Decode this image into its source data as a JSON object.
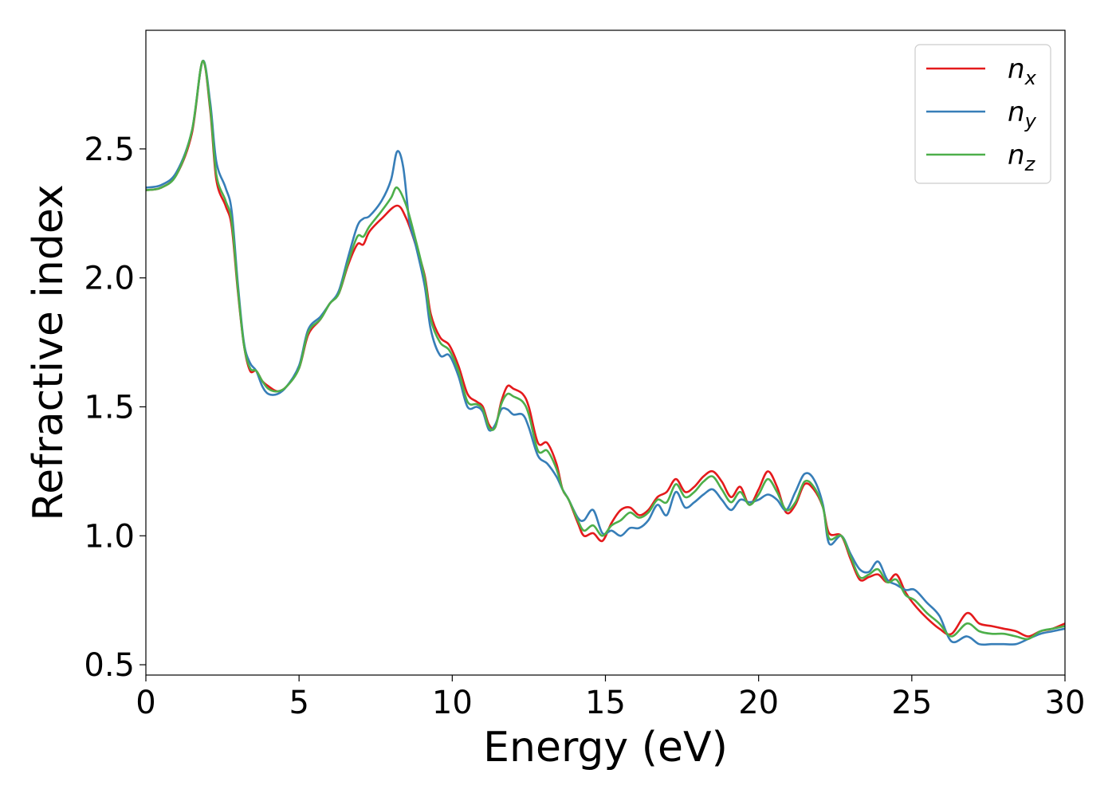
{
  "chart_data": {
    "type": "line",
    "title": "",
    "xlabel": "Energy (eV)",
    "ylabel": "Refractive index",
    "xlim": [
      0,
      30
    ],
    "ylim": [
      0.46,
      2.96
    ],
    "xticks": [
      0,
      5,
      10,
      15,
      20,
      25,
      30
    ],
    "xtick_labels": [
      "0",
      "5",
      "10",
      "15",
      "20",
      "25",
      "30"
    ],
    "yticks": [
      0.5,
      1.0,
      1.5,
      2.0,
      2.5
    ],
    "ytick_labels": [
      "0.5",
      "1.0",
      "1.5",
      "2.0",
      "2.5"
    ],
    "grid": false,
    "legend_position": "top-right",
    "series": [
      {
        "name": "n_x",
        "label_main": "n",
        "label_sub": "x",
        "color": "#e41a1c",
        "points": [
          [
            0,
            2.34
          ],
          [
            0.5,
            2.35
          ],
          [
            1.0,
            2.4
          ],
          [
            1.5,
            2.56
          ],
          [
            1.85,
            2.84
          ],
          [
            2.1,
            2.65
          ],
          [
            2.3,
            2.38
          ],
          [
            2.6,
            2.28
          ],
          [
            2.8,
            2.2
          ],
          [
            3.0,
            1.95
          ],
          [
            3.2,
            1.74
          ],
          [
            3.4,
            1.64
          ],
          [
            3.6,
            1.64
          ],
          [
            3.8,
            1.6
          ],
          [
            4.0,
            1.58
          ],
          [
            4.3,
            1.56
          ],
          [
            4.6,
            1.58
          ],
          [
            5.0,
            1.65
          ],
          [
            5.3,
            1.78
          ],
          [
            5.7,
            1.84
          ],
          [
            6.0,
            1.9
          ],
          [
            6.3,
            1.94
          ],
          [
            6.6,
            2.05
          ],
          [
            6.9,
            2.13
          ],
          [
            7.1,
            2.13
          ],
          [
            7.3,
            2.18
          ],
          [
            7.7,
            2.23
          ],
          [
            8.2,
            2.28
          ],
          [
            8.5,
            2.23
          ],
          [
            8.8,
            2.13
          ],
          [
            9.1,
            2.01
          ],
          [
            9.3,
            1.86
          ],
          [
            9.6,
            1.77
          ],
          [
            9.9,
            1.74
          ],
          [
            10.2,
            1.66
          ],
          [
            10.5,
            1.55
          ],
          [
            10.8,
            1.52
          ],
          [
            11.0,
            1.5
          ],
          [
            11.2,
            1.43
          ],
          [
            11.4,
            1.42
          ],
          [
            11.6,
            1.52
          ],
          [
            11.8,
            1.58
          ],
          [
            12.0,
            1.57
          ],
          [
            12.3,
            1.55
          ],
          [
            12.5,
            1.5
          ],
          [
            12.8,
            1.36
          ],
          [
            13.1,
            1.36
          ],
          [
            13.4,
            1.28
          ],
          [
            13.6,
            1.18
          ],
          [
            13.8,
            1.14
          ],
          [
            14.1,
            1.05
          ],
          [
            14.3,
            1.0
          ],
          [
            14.6,
            1.01
          ],
          [
            14.9,
            0.98
          ],
          [
            15.2,
            1.05
          ],
          [
            15.5,
            1.1
          ],
          [
            15.8,
            1.11
          ],
          [
            16.1,
            1.08
          ],
          [
            16.4,
            1.1
          ],
          [
            16.7,
            1.15
          ],
          [
            17.0,
            1.17
          ],
          [
            17.3,
            1.22
          ],
          [
            17.6,
            1.17
          ],
          [
            17.9,
            1.19
          ],
          [
            18.2,
            1.23
          ],
          [
            18.5,
            1.25
          ],
          [
            18.8,
            1.21
          ],
          [
            19.1,
            1.15
          ],
          [
            19.4,
            1.19
          ],
          [
            19.7,
            1.12
          ],
          [
            20.0,
            1.18
          ],
          [
            20.3,
            1.25
          ],
          [
            20.6,
            1.19
          ],
          [
            20.9,
            1.09
          ],
          [
            21.2,
            1.12
          ],
          [
            21.5,
            1.2
          ],
          [
            21.8,
            1.18
          ],
          [
            22.1,
            1.11
          ],
          [
            22.3,
            1.01
          ],
          [
            22.7,
            1.0
          ],
          [
            23.0,
            0.91
          ],
          [
            23.3,
            0.83
          ],
          [
            23.6,
            0.84
          ],
          [
            23.9,
            0.85
          ],
          [
            24.2,
            0.82
          ],
          [
            24.5,
            0.85
          ],
          [
            24.8,
            0.78
          ],
          [
            25.1,
            0.73
          ],
          [
            25.5,
            0.68
          ],
          [
            25.9,
            0.64
          ],
          [
            26.3,
            0.62
          ],
          [
            26.8,
            0.7
          ],
          [
            27.2,
            0.66
          ],
          [
            27.6,
            0.65
          ],
          [
            28.0,
            0.64
          ],
          [
            28.4,
            0.63
          ],
          [
            28.8,
            0.61
          ],
          [
            29.2,
            0.63
          ],
          [
            29.6,
            0.64
          ],
          [
            30,
            0.66
          ]
        ]
      },
      {
        "name": "n_y",
        "label_main": "n",
        "label_sub": "y",
        "color": "#377eb8",
        "points": [
          [
            0,
            2.35
          ],
          [
            0.5,
            2.36
          ],
          [
            1.0,
            2.41
          ],
          [
            1.5,
            2.57
          ],
          [
            1.85,
            2.84
          ],
          [
            2.1,
            2.68
          ],
          [
            2.3,
            2.45
          ],
          [
            2.6,
            2.35
          ],
          [
            2.8,
            2.26
          ],
          [
            3.0,
            1.98
          ],
          [
            3.2,
            1.75
          ],
          [
            3.4,
            1.67
          ],
          [
            3.6,
            1.64
          ],
          [
            3.8,
            1.58
          ],
          [
            4.0,
            1.55
          ],
          [
            4.3,
            1.55
          ],
          [
            4.6,
            1.58
          ],
          [
            5.0,
            1.66
          ],
          [
            5.3,
            1.8
          ],
          [
            5.7,
            1.85
          ],
          [
            6.0,
            1.9
          ],
          [
            6.3,
            1.95
          ],
          [
            6.6,
            2.08
          ],
          [
            6.9,
            2.2
          ],
          [
            7.1,
            2.23
          ],
          [
            7.3,
            2.24
          ],
          [
            7.7,
            2.3
          ],
          [
            8.0,
            2.38
          ],
          [
            8.2,
            2.49
          ],
          [
            8.4,
            2.43
          ],
          [
            8.6,
            2.22
          ],
          [
            8.8,
            2.13
          ],
          [
            9.1,
            1.97
          ],
          [
            9.3,
            1.8
          ],
          [
            9.6,
            1.7
          ],
          [
            9.9,
            1.7
          ],
          [
            10.2,
            1.62
          ],
          [
            10.5,
            1.5
          ],
          [
            10.8,
            1.5
          ],
          [
            11.0,
            1.48
          ],
          [
            11.2,
            1.41
          ],
          [
            11.4,
            1.43
          ],
          [
            11.6,
            1.49
          ],
          [
            11.8,
            1.49
          ],
          [
            12.0,
            1.47
          ],
          [
            12.3,
            1.47
          ],
          [
            12.5,
            1.42
          ],
          [
            12.8,
            1.31
          ],
          [
            13.1,
            1.28
          ],
          [
            13.4,
            1.23
          ],
          [
            13.6,
            1.18
          ],
          [
            13.8,
            1.14
          ],
          [
            14.1,
            1.07
          ],
          [
            14.3,
            1.06
          ],
          [
            14.6,
            1.1
          ],
          [
            14.9,
            1.01
          ],
          [
            15.2,
            1.02
          ],
          [
            15.5,
            1.0
          ],
          [
            15.8,
            1.03
          ],
          [
            16.1,
            1.03
          ],
          [
            16.4,
            1.06
          ],
          [
            16.7,
            1.12
          ],
          [
            17.0,
            1.08
          ],
          [
            17.3,
            1.17
          ],
          [
            17.6,
            1.11
          ],
          [
            17.9,
            1.13
          ],
          [
            18.2,
            1.16
          ],
          [
            18.5,
            1.18
          ],
          [
            18.8,
            1.14
          ],
          [
            19.1,
            1.1
          ],
          [
            19.4,
            1.14
          ],
          [
            19.7,
            1.13
          ],
          [
            20.0,
            1.14
          ],
          [
            20.3,
            1.16
          ],
          [
            20.6,
            1.14
          ],
          [
            20.9,
            1.1
          ],
          [
            21.2,
            1.17
          ],
          [
            21.5,
            1.24
          ],
          [
            21.8,
            1.22
          ],
          [
            22.1,
            1.12
          ],
          [
            22.3,
            0.97
          ],
          [
            22.7,
            1.0
          ],
          [
            23.0,
            0.93
          ],
          [
            23.3,
            0.87
          ],
          [
            23.6,
            0.86
          ],
          [
            23.9,
            0.9
          ],
          [
            24.2,
            0.83
          ],
          [
            24.5,
            0.81
          ],
          [
            24.8,
            0.79
          ],
          [
            25.1,
            0.79
          ],
          [
            25.5,
            0.74
          ],
          [
            25.9,
            0.69
          ],
          [
            26.3,
            0.59
          ],
          [
            26.8,
            0.61
          ],
          [
            27.2,
            0.58
          ],
          [
            27.6,
            0.58
          ],
          [
            28.0,
            0.58
          ],
          [
            28.4,
            0.58
          ],
          [
            28.8,
            0.6
          ],
          [
            29.2,
            0.62
          ],
          [
            29.6,
            0.63
          ],
          [
            30,
            0.64
          ]
        ]
      },
      {
        "name": "n_z",
        "label_main": "n",
        "label_sub": "z",
        "color": "#4daf4a",
        "points": [
          [
            0,
            2.34
          ],
          [
            0.5,
            2.35
          ],
          [
            1.0,
            2.4
          ],
          [
            1.5,
            2.57
          ],
          [
            1.85,
            2.84
          ],
          [
            2.1,
            2.66
          ],
          [
            2.3,
            2.4
          ],
          [
            2.6,
            2.3
          ],
          [
            2.8,
            2.22
          ],
          [
            3.0,
            1.96
          ],
          [
            3.2,
            1.74
          ],
          [
            3.4,
            1.65
          ],
          [
            3.6,
            1.64
          ],
          [
            3.8,
            1.6
          ],
          [
            4.0,
            1.57
          ],
          [
            4.3,
            1.56
          ],
          [
            4.6,
            1.58
          ],
          [
            5.0,
            1.65
          ],
          [
            5.3,
            1.79
          ],
          [
            5.7,
            1.84
          ],
          [
            6.0,
            1.9
          ],
          [
            6.3,
            1.94
          ],
          [
            6.6,
            2.06
          ],
          [
            6.9,
            2.16
          ],
          [
            7.1,
            2.16
          ],
          [
            7.3,
            2.2
          ],
          [
            7.7,
            2.26
          ],
          [
            8.0,
            2.31
          ],
          [
            8.2,
            2.35
          ],
          [
            8.5,
            2.28
          ],
          [
            8.8,
            2.15
          ],
          [
            9.1,
            2.0
          ],
          [
            9.3,
            1.84
          ],
          [
            9.6,
            1.75
          ],
          [
            9.9,
            1.72
          ],
          [
            10.2,
            1.64
          ],
          [
            10.5,
            1.52
          ],
          [
            10.8,
            1.51
          ],
          [
            11.0,
            1.49
          ],
          [
            11.2,
            1.42
          ],
          [
            11.4,
            1.42
          ],
          [
            11.6,
            1.51
          ],
          [
            11.8,
            1.55
          ],
          [
            12.0,
            1.54
          ],
          [
            12.3,
            1.52
          ],
          [
            12.5,
            1.47
          ],
          [
            12.8,
            1.33
          ],
          [
            13.1,
            1.33
          ],
          [
            13.4,
            1.26
          ],
          [
            13.6,
            1.18
          ],
          [
            13.8,
            1.14
          ],
          [
            14.1,
            1.06
          ],
          [
            14.3,
            1.02
          ],
          [
            14.6,
            1.04
          ],
          [
            14.9,
            1.0
          ],
          [
            15.2,
            1.04
          ],
          [
            15.5,
            1.06
          ],
          [
            15.8,
            1.09
          ],
          [
            16.1,
            1.07
          ],
          [
            16.4,
            1.09
          ],
          [
            16.7,
            1.14
          ],
          [
            17.0,
            1.13
          ],
          [
            17.3,
            1.2
          ],
          [
            17.6,
            1.15
          ],
          [
            17.9,
            1.17
          ],
          [
            18.2,
            1.21
          ],
          [
            18.5,
            1.23
          ],
          [
            18.8,
            1.18
          ],
          [
            19.1,
            1.13
          ],
          [
            19.4,
            1.17
          ],
          [
            19.7,
            1.12
          ],
          [
            20.0,
            1.16
          ],
          [
            20.3,
            1.22
          ],
          [
            20.6,
            1.17
          ],
          [
            20.9,
            1.1
          ],
          [
            21.2,
            1.13
          ],
          [
            21.5,
            1.21
          ],
          [
            21.8,
            1.19
          ],
          [
            22.1,
            1.11
          ],
          [
            22.3,
            0.99
          ],
          [
            22.7,
            1.0
          ],
          [
            23.0,
            0.92
          ],
          [
            23.3,
            0.84
          ],
          [
            23.6,
            0.85
          ],
          [
            23.9,
            0.87
          ],
          [
            24.2,
            0.82
          ],
          [
            24.5,
            0.83
          ],
          [
            24.8,
            0.77
          ],
          [
            25.1,
            0.75
          ],
          [
            25.5,
            0.7
          ],
          [
            25.9,
            0.66
          ],
          [
            26.3,
            0.61
          ],
          [
            26.8,
            0.66
          ],
          [
            27.2,
            0.63
          ],
          [
            27.6,
            0.62
          ],
          [
            28.0,
            0.62
          ],
          [
            28.4,
            0.61
          ],
          [
            28.8,
            0.6
          ],
          [
            29.2,
            0.63
          ],
          [
            29.6,
            0.64
          ],
          [
            30,
            0.65
          ]
        ]
      }
    ]
  }
}
